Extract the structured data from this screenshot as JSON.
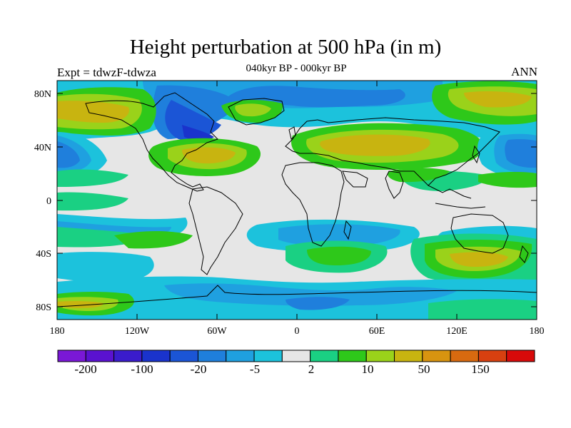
{
  "title": "Height perturbation at 500 hPa (in m)",
  "subtitle": "040kyr BP - 000kyr BP",
  "left_label": "Expt = tdwzF-tdwza",
  "right_label": "ANN",
  "lat_ticks": [
    "80N",
    "40N",
    "0",
    "40S",
    "80S"
  ],
  "lon_ticks": [
    "180",
    "120W",
    "60W",
    "0",
    "60E",
    "120E",
    "180"
  ],
  "colorbar": {
    "colors": [
      "#7a18d6",
      "#5a12d0",
      "#3a1ccc",
      "#1a33cc",
      "#1b55d6",
      "#1f7fdc",
      "#1fa0e0",
      "#1cc2dc",
      "#e6e6e6",
      "#1ad083",
      "#2ec81a",
      "#9ad21a",
      "#c8b410",
      "#d89410",
      "#d86a10",
      "#d84010",
      "#d80a0a"
    ],
    "labels": [
      "-200",
      "-100",
      "-20",
      "-5",
      "2",
      "10",
      "50",
      "150"
    ]
  },
  "map_colors": {
    "neutral": "#e6e6e6",
    "cyan": "#1cc2dc",
    "lightblue": "#1fa0e0",
    "blue": "#1f7fdc",
    "darkblue": "#1b55d6",
    "deepblue": "#1a33cc",
    "purpleblue": "#3a1ccc",
    "teal": "#1ad083",
    "green": "#2ec81a",
    "yellowgreen": "#9ad21a",
    "olive": "#c8b410",
    "orange": "#d89410",
    "coastline": "#000000"
  }
}
